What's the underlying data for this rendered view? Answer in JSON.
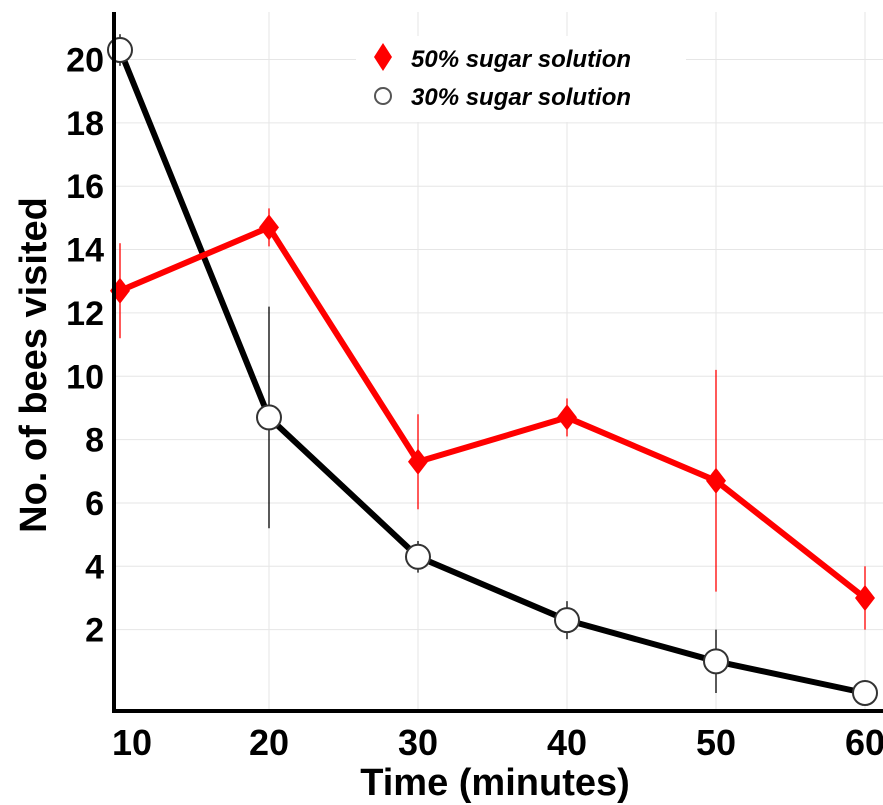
{
  "chart_data": {
    "type": "line",
    "xlabel": "Time (minutes)",
    "ylabel": "No. of bees visited",
    "x": [
      10,
      20,
      30,
      40,
      50,
      60
    ],
    "xlim": [
      10,
      60
    ],
    "ylim": [
      0,
      21.5
    ],
    "xticks": [
      "10",
      "20",
      "30",
      "40",
      "50",
      "60"
    ],
    "yticks": [
      "2",
      "4",
      "6",
      "8",
      "10",
      "12",
      "14",
      "16",
      "18",
      "20"
    ],
    "grid": true,
    "legend_position": "top-center",
    "series": [
      {
        "name": "50% sugar solution",
        "color": "#ff0000",
        "marker": "diamond",
        "values": [
          12.7,
          14.7,
          7.3,
          8.7,
          6.7,
          3.0
        ],
        "error": [
          1.5,
          0.6,
          1.5,
          0.6,
          3.5,
          1.0
        ]
      },
      {
        "name": "30% sugar solution",
        "color": "#000000",
        "marker": "open-circle",
        "values": [
          20.3,
          8.7,
          4.3,
          2.3,
          1.0,
          0.0
        ],
        "error": [
          0.5,
          3.5,
          0.5,
          0.6,
          1.0,
          0.3
        ]
      }
    ]
  }
}
